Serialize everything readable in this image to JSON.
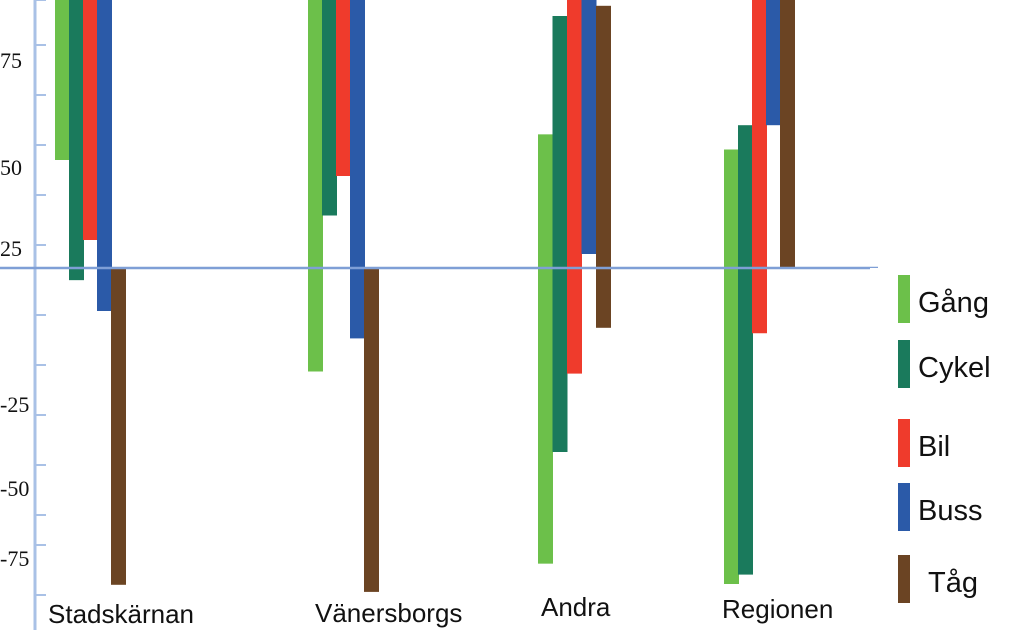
{
  "chart_data": {
    "type": "bar",
    "title": "",
    "xlabel": "",
    "ylabel": "",
    "categories": [
      "Stadskärnan",
      "Vänersborgs",
      "Andra",
      "Regionen"
    ],
    "y_ticks": [
      "75",
      "50",
      "25",
      "-25",
      "-50",
      "-75"
    ],
    "legend_position": "right",
    "grid": false,
    "series": [
      {
        "name": "Gång",
        "color": "#6cc04a",
        "ranges": [
          [
            30,
            123
          ],
          [
            -23,
            76
          ],
          [
            -73,
            33
          ],
          [
            -80,
            30
          ]
        ]
      },
      {
        "name": "Cykel",
        "color": "#1a7a5c",
        "ranges": [
          [
            -3,
            123
          ],
          [
            10,
            121
          ],
          [
            -46,
            63
          ],
          [
            -73,
            34
          ]
        ]
      },
      {
        "name": "Bil",
        "color": "#ef3b2c",
        "ranges": [
          [
            7,
            121
          ],
          [
            20,
            123
          ],
          [
            -24,
            107
          ],
          [
            -15,
            119
          ]
        ]
      },
      {
        "name": "Buss",
        "color": "#2b5aa8",
        "ranges": [
          [
            -10,
            107
          ],
          [
            -16,
            114
          ],
          [
            4,
            124
          ],
          [
            34,
            130
          ]
        ]
      },
      {
        "name": "Tåg",
        "color": "#6b4423",
        "ranges": [
          [
            -72,
            0
          ],
          [
            -79,
            0
          ],
          [
            -13,
            57
          ],
          [
            0,
            59
          ]
        ]
      }
    ]
  }
}
